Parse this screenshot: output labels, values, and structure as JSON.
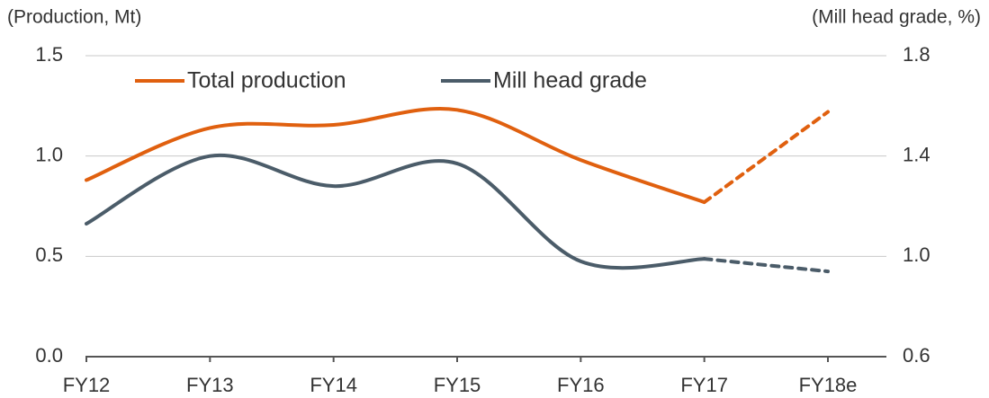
{
  "chart_data": {
    "type": "line",
    "y_label": "(Production, Mt)",
    "y2_label": "(Mill head grade, %)",
    "categories": [
      "FY12",
      "FY13",
      "FY14",
      "FY15",
      "FY16",
      "FY17",
      "FY18e"
    ],
    "series": [
      {
        "name": "Total production",
        "color": "#e0600f",
        "values": [
          0.88,
          1.14,
          1.155,
          1.23,
          0.98,
          0.77,
          1.22
        ]
      },
      {
        "name": "Mill head grade",
        "color": "#4b5c69",
        "axis": "y2",
        "values": [
          1.13,
          1.4,
          1.28,
          1.37,
          0.98,
          0.99,
          0.94
        ]
      }
    ],
    "forecast_from": "FY17",
    "ylim": [
      0,
      1.5
    ],
    "yticks": [
      {
        "value": 0,
        "label": "0.0"
      },
      0.5,
      {
        "value": 1,
        "label": "1.0"
      },
      1.5
    ],
    "y2lim": [
      0.6,
      1.8
    ],
    "y2ticks": [
      0.6,
      {
        "value": 1,
        "label": "1.0"
      },
      1.4,
      1.8
    ],
    "grid": true,
    "legend": "top"
  }
}
